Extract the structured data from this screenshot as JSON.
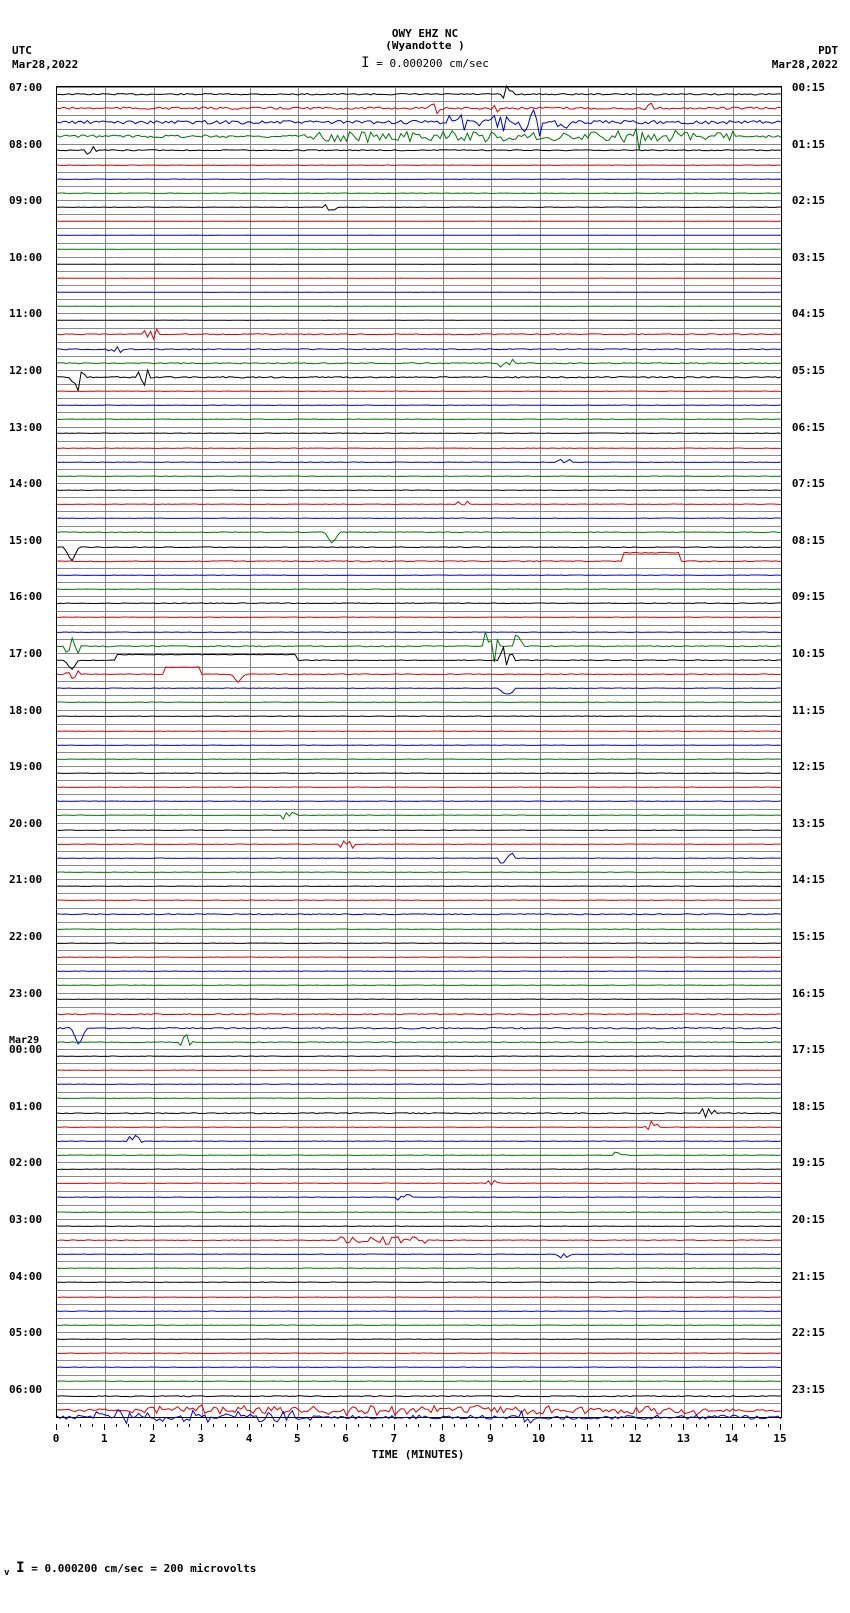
{
  "station": "OWY EHZ NC",
  "location": "(Wyandotte )",
  "scale_text": "= 0.000200 cm/sec",
  "tz_left": "UTC",
  "tz_right": "PDT",
  "date_left": "Mar28,2022",
  "date_right": "Mar28,2022",
  "mid_date": "Mar29",
  "footer": "= 0.000200 cm/sec =    200 microvolts",
  "x_title": "TIME (MINUTES)",
  "colors": {
    "black": "#000000",
    "red": "#dd0000",
    "blue": "#0000dd",
    "green": "#007700",
    "grid": "#888888"
  },
  "x_ticks": [
    0,
    1,
    2,
    3,
    4,
    5,
    6,
    7,
    8,
    9,
    10,
    11,
    12,
    13,
    14,
    15
  ],
  "n_rows": 94,
  "left_labels": [
    {
      "row": 0,
      "text": "07:00"
    },
    {
      "row": 4,
      "text": "08:00"
    },
    {
      "row": 8,
      "text": "09:00"
    },
    {
      "row": 12,
      "text": "10:00"
    },
    {
      "row": 16,
      "text": "11:00"
    },
    {
      "row": 20,
      "text": "12:00"
    },
    {
      "row": 24,
      "text": "13:00"
    },
    {
      "row": 28,
      "text": "14:00"
    },
    {
      "row": 32,
      "text": "15:00"
    },
    {
      "row": 36,
      "text": "16:00"
    },
    {
      "row": 40,
      "text": "17:00"
    },
    {
      "row": 44,
      "text": "18:00"
    },
    {
      "row": 48,
      "text": "19:00"
    },
    {
      "row": 52,
      "text": "20:00"
    },
    {
      "row": 56,
      "text": "21:00"
    },
    {
      "row": 60,
      "text": "22:00"
    },
    {
      "row": 64,
      "text": "23:00"
    },
    {
      "row": 68,
      "text": "00:00"
    },
    {
      "row": 72,
      "text": "01:00"
    },
    {
      "row": 76,
      "text": "02:00"
    },
    {
      "row": 80,
      "text": "03:00"
    },
    {
      "row": 84,
      "text": "04:00"
    },
    {
      "row": 88,
      "text": "05:00"
    },
    {
      "row": 92,
      "text": "06:00"
    }
  ],
  "right_labels": [
    {
      "row": 0,
      "text": "00:15"
    },
    {
      "row": 4,
      "text": "01:15"
    },
    {
      "row": 8,
      "text": "02:15"
    },
    {
      "row": 12,
      "text": "03:15"
    },
    {
      "row": 16,
      "text": "04:15"
    },
    {
      "row": 20,
      "text": "05:15"
    },
    {
      "row": 24,
      "text": "06:15"
    },
    {
      "row": 28,
      "text": "07:15"
    },
    {
      "row": 32,
      "text": "08:15"
    },
    {
      "row": 36,
      "text": "09:15"
    },
    {
      "row": 40,
      "text": "10:15"
    },
    {
      "row": 44,
      "text": "11:15"
    },
    {
      "row": 48,
      "text": "12:15"
    },
    {
      "row": 52,
      "text": "13:15"
    },
    {
      "row": 56,
      "text": "14:15"
    },
    {
      "row": 60,
      "text": "15:15"
    },
    {
      "row": 64,
      "text": "16:15"
    },
    {
      "row": 68,
      "text": "17:15"
    },
    {
      "row": 72,
      "text": "18:15"
    },
    {
      "row": 76,
      "text": "19:15"
    },
    {
      "row": 80,
      "text": "20:15"
    },
    {
      "row": 84,
      "text": "21:15"
    },
    {
      "row": 88,
      "text": "22:15"
    },
    {
      "row": 92,
      "text": "23:15"
    }
  ],
  "mid_date_row": 68,
  "traces": [
    {
      "row": 0,
      "color": "black",
      "amp": 0.4,
      "noise": 0.3,
      "events": [
        {
          "x": 0.62,
          "h": 1.0
        }
      ]
    },
    {
      "row": 1,
      "color": "red",
      "amp": 0.4,
      "noise": 0.5,
      "events": [
        {
          "x": 0.52,
          "h": 0.6
        },
        {
          "x": 0.6,
          "h": 0.5
        },
        {
          "x": 0.82,
          "h": 0.6
        }
      ]
    },
    {
      "row": 2,
      "color": "blue",
      "amp": 0.5,
      "noise": 0.6,
      "events": [
        {
          "x": 0.6,
          "h": 0.8,
          "w": 0.06
        },
        {
          "x": 0.66,
          "h": 2.0
        },
        {
          "x": 0.7,
          "h": 0.7
        }
      ]
    },
    {
      "row": 3,
      "color": "green",
      "amp": 0.5,
      "noise": 0.5,
      "events": [
        {
          "x": 0.64,
          "h": 0.5,
          "w": 0.3
        },
        {
          "x": 0.8,
          "h": 1.2
        }
      ]
    },
    {
      "row": 4,
      "color": "black",
      "amp": 0.3,
      "noise": 0.3,
      "events": [
        {
          "x": 0.05,
          "h": 0.6
        }
      ]
    },
    {
      "row": 5,
      "color": "red",
      "amp": 0.2,
      "noise": 0.2,
      "events": []
    },
    {
      "row": 6,
      "color": "blue",
      "amp": 0.2,
      "noise": 0.2,
      "events": []
    },
    {
      "row": 7,
      "color": "green",
      "amp": 0.2,
      "noise": 0.2,
      "events": []
    },
    {
      "row": 8,
      "color": "black",
      "amp": 0.2,
      "noise": 0.2,
      "events": [
        {
          "x": 0.38,
          "h": 0.4
        }
      ]
    },
    {
      "row": 9,
      "color": "red",
      "amp": 0.1,
      "noise": 0.1,
      "events": []
    },
    {
      "row": 10,
      "color": "blue",
      "amp": 0.1,
      "noise": 0.1,
      "events": []
    },
    {
      "row": 11,
      "color": "green",
      "amp": 0.1,
      "noise": 0.1,
      "events": []
    },
    {
      "row": 12,
      "color": "black",
      "amp": 0.1,
      "noise": 0.1,
      "events": []
    },
    {
      "row": 13,
      "color": "red",
      "amp": 0.1,
      "noise": 0.1,
      "events": []
    },
    {
      "row": 14,
      "color": "blue",
      "amp": 0.1,
      "noise": 0.1,
      "events": []
    },
    {
      "row": 15,
      "color": "green",
      "amp": 0.1,
      "noise": 0.1,
      "events": []
    },
    {
      "row": 16,
      "color": "black",
      "amp": 0.1,
      "noise": 0.1,
      "events": []
    },
    {
      "row": 17,
      "color": "red",
      "amp": 0.3,
      "noise": 0.3,
      "events": [
        {
          "x": 0.13,
          "h": 0.6
        }
      ]
    },
    {
      "row": 18,
      "color": "blue",
      "amp": 0.3,
      "noise": 0.3,
      "events": [
        {
          "x": 0.08,
          "h": 0.5
        }
      ]
    },
    {
      "row": 19,
      "color": "green",
      "amp": 0.3,
      "noise": 0.3,
      "events": [
        {
          "x": 0.62,
          "h": 0.5
        }
      ]
    },
    {
      "row": 20,
      "color": "black",
      "amp": 0.4,
      "noise": 0.3,
      "events": [
        {
          "x": 0.03,
          "h": 1.5
        },
        {
          "x": 0.12,
          "h": 0.8
        }
      ]
    },
    {
      "row": 21,
      "color": "red",
      "amp": 0.2,
      "noise": 0.2,
      "events": []
    },
    {
      "row": 22,
      "color": "blue",
      "amp": 0.2,
      "noise": 0.2,
      "events": []
    },
    {
      "row": 23,
      "color": "green",
      "amp": 0.2,
      "noise": 0.2,
      "events": []
    },
    {
      "row": 24,
      "color": "black",
      "amp": 0.2,
      "noise": 0.2,
      "events": []
    },
    {
      "row": 25,
      "color": "red",
      "amp": 0.2,
      "noise": 0.2,
      "events": []
    },
    {
      "row": 26,
      "color": "blue",
      "amp": 0.2,
      "noise": 0.2,
      "events": [
        {
          "x": 0.7,
          "h": 0.4
        }
      ]
    },
    {
      "row": 27,
      "color": "green",
      "amp": 0.2,
      "noise": 0.2,
      "events": []
    },
    {
      "row": 28,
      "color": "black",
      "amp": 0.2,
      "noise": 0.2,
      "events": []
    },
    {
      "row": 29,
      "color": "red",
      "amp": 0.2,
      "noise": 0.2,
      "events": [
        {
          "x": 0.56,
          "h": 0.4
        }
      ]
    },
    {
      "row": 30,
      "color": "blue",
      "amp": 0.2,
      "noise": 0.2,
      "events": []
    },
    {
      "row": 31,
      "color": "green",
      "amp": 0.3,
      "noise": 0.2,
      "events": [
        {
          "x": 0.38,
          "h": 1.2,
          "shape": "dip"
        }
      ]
    },
    {
      "row": 32,
      "color": "black",
      "amp": 0.3,
      "noise": 0.2,
      "events": [
        {
          "x": 0.02,
          "h": 1.5,
          "shape": "dip"
        }
      ]
    },
    {
      "row": 33,
      "color": "red",
      "amp": 0.3,
      "noise": 0.3,
      "events": [
        {
          "x": 0.78,
          "h": 1.2,
          "shape": "step",
          "w": 0.08
        }
      ]
    },
    {
      "row": 34,
      "color": "blue",
      "amp": 0.2,
      "noise": 0.2,
      "events": []
    },
    {
      "row": 35,
      "color": "green",
      "amp": 0.2,
      "noise": 0.2,
      "events": []
    },
    {
      "row": 36,
      "color": "black",
      "amp": 0.3,
      "noise": 0.2,
      "events": []
    },
    {
      "row": 37,
      "color": "red",
      "amp": 0.2,
      "noise": 0.2,
      "events": []
    },
    {
      "row": 38,
      "color": "blue",
      "amp": 0.2,
      "noise": 0.2,
      "events": []
    },
    {
      "row": 39,
      "color": "green",
      "amp": 0.3,
      "noise": 0.3,
      "events": [
        {
          "x": 0.02,
          "h": 1.0
        },
        {
          "x": 0.6,
          "h": 1.8
        },
        {
          "x": 0.64,
          "h": 1.2
        }
      ]
    },
    {
      "row": 40,
      "color": "black",
      "amp": 0.3,
      "noise": 0.2,
      "events": [
        {
          "x": 0.02,
          "h": 1.0,
          "shape": "dip"
        },
        {
          "x": 0.08,
          "h": 0.8,
          "shape": "step",
          "w": 0.25
        },
        {
          "x": 0.62,
          "h": 1.5
        }
      ]
    },
    {
      "row": 41,
      "color": "red",
      "amp": 0.3,
      "noise": 0.2,
      "events": [
        {
          "x": 0.02,
          "h": 0.5
        },
        {
          "x": 0.15,
          "h": 1.0,
          "shape": "step",
          "w": 0.05
        },
        {
          "x": 0.25,
          "h": 0.8,
          "shape": "dip"
        }
      ]
    },
    {
      "row": 42,
      "color": "blue",
      "amp": 0.2,
      "noise": 0.2,
      "events": [
        {
          "x": 0.62,
          "h": 0.6
        }
      ]
    },
    {
      "row": 43,
      "color": "green",
      "amp": 0.2,
      "noise": 0.2,
      "events": []
    },
    {
      "row": 44,
      "color": "black",
      "amp": 0.2,
      "noise": 0.2,
      "events": []
    },
    {
      "row": 45,
      "color": "red",
      "amp": 0.2,
      "noise": 0.2,
      "events": []
    },
    {
      "row": 46,
      "color": "blue",
      "amp": 0.2,
      "noise": 0.2,
      "events": []
    },
    {
      "row": 47,
      "color": "green",
      "amp": 0.2,
      "noise": 0.2,
      "events": []
    },
    {
      "row": 48,
      "color": "black",
      "amp": 0.2,
      "noise": 0.2,
      "events": []
    },
    {
      "row": 49,
      "color": "red",
      "amp": 0.2,
      "noise": 0.2,
      "events": []
    },
    {
      "row": 50,
      "color": "blue",
      "amp": 0.2,
      "noise": 0.2,
      "events": []
    },
    {
      "row": 51,
      "color": "green",
      "amp": 0.2,
      "noise": 0.2,
      "events": [
        {
          "x": 0.32,
          "h": 0.4
        }
      ]
    },
    {
      "row": 52,
      "color": "black",
      "amp": 0.2,
      "noise": 0.2,
      "events": []
    },
    {
      "row": 53,
      "color": "red",
      "amp": 0.2,
      "noise": 0.2,
      "events": [
        {
          "x": 0.4,
          "h": 0.4
        }
      ]
    },
    {
      "row": 54,
      "color": "blue",
      "amp": 0.2,
      "noise": 0.2,
      "events": [
        {
          "x": 0.62,
          "h": 0.5
        }
      ]
    },
    {
      "row": 55,
      "color": "green",
      "amp": 0.2,
      "noise": 0.2,
      "events": []
    },
    {
      "row": 56,
      "color": "black",
      "amp": 0.2,
      "noise": 0.2,
      "events": []
    },
    {
      "row": 57,
      "color": "red",
      "amp": 0.2,
      "noise": 0.2,
      "events": []
    },
    {
      "row": 58,
      "color": "blue",
      "amp": 0.3,
      "noise": 0.3,
      "events": []
    },
    {
      "row": 59,
      "color": "green",
      "amp": 0.2,
      "noise": 0.2,
      "events": []
    },
    {
      "row": 60,
      "color": "black",
      "amp": 0.2,
      "noise": 0.2,
      "events": []
    },
    {
      "row": 61,
      "color": "red",
      "amp": 0.2,
      "noise": 0.2,
      "events": []
    },
    {
      "row": 62,
      "color": "blue",
      "amp": 0.2,
      "noise": 0.2,
      "events": []
    },
    {
      "row": 63,
      "color": "green",
      "amp": 0.2,
      "noise": 0.2,
      "events": []
    },
    {
      "row": 64,
      "color": "black",
      "amp": 0.2,
      "noise": 0.2,
      "events": []
    },
    {
      "row": 65,
      "color": "red",
      "amp": 0.3,
      "noise": 0.3,
      "events": []
    },
    {
      "row": 66,
      "color": "blue",
      "amp": 0.4,
      "noise": 0.3,
      "events": [
        {
          "x": 0.03,
          "h": 1.8,
          "shape": "dip"
        }
      ]
    },
    {
      "row": 67,
      "color": "green",
      "amp": 0.3,
      "noise": 0.2,
      "events": [
        {
          "x": 0.18,
          "h": 0.8
        }
      ]
    },
    {
      "row": 68,
      "color": "black",
      "amp": 0.2,
      "noise": 0.2,
      "events": []
    },
    {
      "row": 69,
      "color": "red",
      "amp": 0.2,
      "noise": 0.2,
      "events": []
    },
    {
      "row": 70,
      "color": "blue",
      "amp": 0.2,
      "noise": 0.2,
      "events": []
    },
    {
      "row": 71,
      "color": "green",
      "amp": 0.2,
      "noise": 0.2,
      "events": []
    },
    {
      "row": 72,
      "color": "black",
      "amp": 0.3,
      "noise": 0.3,
      "events": [
        {
          "x": 0.9,
          "h": 0.6
        }
      ]
    },
    {
      "row": 73,
      "color": "red",
      "amp": 0.2,
      "noise": 0.2,
      "events": [
        {
          "x": 0.82,
          "h": 0.6
        }
      ]
    },
    {
      "row": 74,
      "color": "blue",
      "amp": 0.2,
      "noise": 0.2,
      "events": [
        {
          "x": 0.11,
          "h": 0.7
        }
      ]
    },
    {
      "row": 75,
      "color": "green",
      "amp": 0.2,
      "noise": 0.2,
      "events": [
        {
          "x": 0.78,
          "h": 0.8
        }
      ]
    },
    {
      "row": 76,
      "color": "black",
      "amp": 0.2,
      "noise": 0.2,
      "events": []
    },
    {
      "row": 77,
      "color": "red",
      "amp": 0.2,
      "noise": 0.2,
      "events": [
        {
          "x": 0.6,
          "h": 0.4
        }
      ]
    },
    {
      "row": 78,
      "color": "blue",
      "amp": 0.2,
      "noise": 0.2,
      "events": [
        {
          "x": 0.48,
          "h": 0.4
        }
      ]
    },
    {
      "row": 79,
      "color": "green",
      "amp": 0.2,
      "noise": 0.2,
      "events": []
    },
    {
      "row": 80,
      "color": "black",
      "amp": 0.2,
      "noise": 0.2,
      "events": []
    },
    {
      "row": 81,
      "color": "red",
      "amp": 0.3,
      "noise": 0.2,
      "events": [
        {
          "x": 0.45,
          "h": 0.4,
          "w": 0.06
        }
      ]
    },
    {
      "row": 82,
      "color": "blue",
      "amp": 0.2,
      "noise": 0.2,
      "events": [
        {
          "x": 0.7,
          "h": 0.4
        }
      ]
    },
    {
      "row": 83,
      "color": "green",
      "amp": 0.2,
      "noise": 0.2,
      "events": []
    },
    {
      "row": 84,
      "color": "black",
      "amp": 0.2,
      "noise": 0.2,
      "events": []
    },
    {
      "row": 85,
      "color": "red",
      "amp": 0.2,
      "noise": 0.2,
      "events": []
    },
    {
      "row": 86,
      "color": "blue",
      "amp": 0.2,
      "noise": 0.2,
      "events": []
    },
    {
      "row": 87,
      "color": "green",
      "amp": 0.2,
      "noise": 0.2,
      "events": []
    },
    {
      "row": 88,
      "color": "black",
      "amp": 0.2,
      "noise": 0.2,
      "events": []
    },
    {
      "row": 89,
      "color": "red",
      "amp": 0.2,
      "noise": 0.2,
      "events": []
    },
    {
      "row": 90,
      "color": "blue",
      "amp": 0.2,
      "noise": 0.2,
      "events": []
    },
    {
      "row": 91,
      "color": "green",
      "amp": 0.2,
      "noise": 0.2,
      "events": []
    },
    {
      "row": 92,
      "color": "black",
      "amp": 0.3,
      "noise": 0.3,
      "events": []
    },
    {
      "row": 93,
      "color": "red",
      "amp": 0.5,
      "noise": 0.5,
      "events": [
        {
          "x": 0.5,
          "h": 0.4,
          "w": 0.4
        }
      ]
    }
  ],
  "extra_traces": [
    {
      "row": 93,
      "offset": 0.5,
      "color": "blue",
      "amp": 0.6,
      "noise": 0.6,
      "events": [
        {
          "x": 0.2,
          "h": 0.5,
          "w": 0.15
        },
        {
          "x": 0.65,
          "h": 0.6
        }
      ]
    }
  ]
}
